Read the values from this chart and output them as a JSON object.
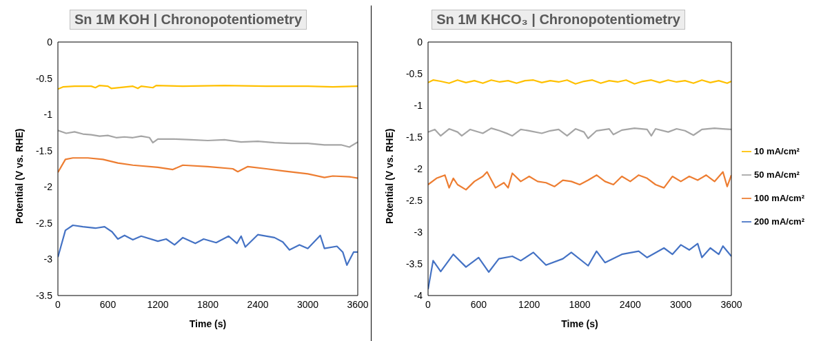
{
  "chart_data": [
    {
      "type": "line",
      "title": "Sn 1M KOH | Chronopotentiometry",
      "xlabel": "Time (s)",
      "ylabel": "Potential (V vs. RHE)",
      "xlim": [
        0,
        3600
      ],
      "xticks": [
        0,
        600,
        1200,
        1800,
        2400,
        3000,
        3600
      ],
      "ylim": [
        -3.5,
        0
      ],
      "yticks": [
        0,
        -0.5,
        -1,
        -1.5,
        -2,
        -2.5,
        -3,
        -3.5
      ],
      "grid": false,
      "legend": false,
      "series": [
        {
          "color": "#ffc000",
          "x": [
            0,
            60,
            200,
            400,
            450,
            500,
            600,
            640,
            900,
            960,
            1000,
            1140,
            1180,
            1500,
            2000,
            2500,
            3000,
            3300,
            3600
          ],
          "values": [
            -0.65,
            -0.62,
            -0.61,
            -0.61,
            -0.63,
            -0.6,
            -0.61,
            -0.64,
            -0.61,
            -0.64,
            -0.61,
            -0.63,
            -0.6,
            -0.61,
            -0.6,
            -0.61,
            -0.61,
            -0.62,
            -0.61
          ]
        },
        {
          "color": "#a5a5a5",
          "x": [
            0,
            100,
            200,
            300,
            400,
            500,
            600,
            700,
            800,
            900,
            1000,
            1100,
            1140,
            1200,
            1400,
            1600,
            1800,
            2000,
            2200,
            2400,
            2600,
            2800,
            3000,
            3200,
            3400,
            3500,
            3600
          ],
          "values": [
            -1.22,
            -1.26,
            -1.24,
            -1.27,
            -1.28,
            -1.3,
            -1.29,
            -1.32,
            -1.31,
            -1.32,
            -1.3,
            -1.32,
            -1.39,
            -1.34,
            -1.34,
            -1.35,
            -1.36,
            -1.35,
            -1.38,
            -1.37,
            -1.39,
            -1.4,
            -1.4,
            -1.42,
            -1.42,
            -1.45,
            -1.38
          ]
        },
        {
          "color": "#ed7d31",
          "x": [
            0,
            90,
            180,
            360,
            540,
            720,
            900,
            1200,
            1380,
            1500,
            1800,
            2100,
            2160,
            2280,
            2500,
            2700,
            3000,
            3200,
            3300,
            3500,
            3600
          ],
          "values": [
            -1.8,
            -1.62,
            -1.6,
            -1.6,
            -1.62,
            -1.67,
            -1.7,
            -1.73,
            -1.76,
            -1.7,
            -1.72,
            -1.75,
            -1.79,
            -1.72,
            -1.75,
            -1.78,
            -1.82,
            -1.87,
            -1.85,
            -1.86,
            -1.88
          ]
        },
        {
          "color": "#4472c4",
          "x": [
            0,
            90,
            180,
            300,
            450,
            560,
            650,
            720,
            800,
            900,
            1000,
            1200,
            1300,
            1400,
            1500,
            1650,
            1750,
            1900,
            2050,
            2150,
            2200,
            2250,
            2400,
            2600,
            2700,
            2780,
            2900,
            3000,
            3150,
            3200,
            3350,
            3420,
            3470,
            3550,
            3600
          ],
          "values": [
            -2.97,
            -2.6,
            -2.53,
            -2.55,
            -2.57,
            -2.55,
            -2.62,
            -2.72,
            -2.67,
            -2.73,
            -2.68,
            -2.75,
            -2.72,
            -2.8,
            -2.7,
            -2.78,
            -2.72,
            -2.77,
            -2.68,
            -2.78,
            -2.68,
            -2.83,
            -2.66,
            -2.7,
            -2.76,
            -2.87,
            -2.8,
            -2.85,
            -2.67,
            -2.85,
            -2.82,
            -2.9,
            -3.08,
            -2.9,
            -2.9
          ]
        }
      ]
    },
    {
      "type": "line",
      "title": "Sn 1M KHCO₃ | Chronopotentiometry",
      "xlabel": "Time (s)",
      "ylabel": "Potential (V vs. RHE)",
      "xlim": [
        0,
        3600
      ],
      "xticks": [
        0,
        600,
        1200,
        1800,
        2400,
        3000,
        3600
      ],
      "ylim": [
        -4,
        0
      ],
      "yticks": [
        0,
        -0.5,
        -1,
        -1.5,
        -2,
        -2.5,
        -3,
        -3.5,
        -4
      ],
      "grid": false,
      "legend": "right",
      "series": [
        {
          "name": "10 mA/cm²",
          "color": "#ffc000",
          "x": [
            0,
            60,
            150,
            250,
            350,
            450,
            550,
            650,
            750,
            850,
            950,
            1050,
            1150,
            1250,
            1350,
            1450,
            1550,
            1650,
            1750,
            1850,
            1950,
            2050,
            2150,
            2250,
            2350,
            2450,
            2550,
            2650,
            2750,
            2850,
            2950,
            3050,
            3150,
            3250,
            3350,
            3450,
            3550,
            3600
          ],
          "values": [
            -0.64,
            -0.6,
            -0.62,
            -0.65,
            -0.6,
            -0.64,
            -0.61,
            -0.65,
            -0.6,
            -0.63,
            -0.61,
            -0.65,
            -0.61,
            -0.6,
            -0.64,
            -0.61,
            -0.63,
            -0.6,
            -0.66,
            -0.62,
            -0.6,
            -0.65,
            -0.61,
            -0.63,
            -0.6,
            -0.66,
            -0.62,
            -0.6,
            -0.64,
            -0.6,
            -0.63,
            -0.61,
            -0.65,
            -0.6,
            -0.64,
            -0.61,
            -0.65,
            -0.62
          ]
        },
        {
          "name": "50 mA/cm²",
          "color": "#a5a5a5",
          "x": [
            0,
            80,
            150,
            250,
            350,
            400,
            500,
            650,
            750,
            850,
            950,
            1000,
            1100,
            1200,
            1350,
            1450,
            1550,
            1650,
            1750,
            1850,
            1900,
            2000,
            2150,
            2200,
            2300,
            2450,
            2600,
            2650,
            2700,
            2850,
            2950,
            3050,
            3150,
            3250,
            3400,
            3500,
            3600
          ],
          "values": [
            -1.42,
            -1.38,
            -1.48,
            -1.37,
            -1.42,
            -1.48,
            -1.38,
            -1.44,
            -1.36,
            -1.4,
            -1.45,
            -1.48,
            -1.38,
            -1.4,
            -1.44,
            -1.4,
            -1.38,
            -1.48,
            -1.37,
            -1.42,
            -1.52,
            -1.4,
            -1.37,
            -1.46,
            -1.39,
            -1.36,
            -1.38,
            -1.48,
            -1.37,
            -1.42,
            -1.37,
            -1.4,
            -1.47,
            -1.38,
            -1.36,
            -1.37,
            -1.38
          ]
        },
        {
          "name": "100 mA/cm²",
          "color": "#ed7d31",
          "x": [
            0,
            100,
            200,
            250,
            300,
            350,
            450,
            550,
            650,
            700,
            800,
            900,
            950,
            1000,
            1100,
            1200,
            1300,
            1400,
            1500,
            1600,
            1700,
            1800,
            1900,
            2000,
            2100,
            2200,
            2300,
            2400,
            2500,
            2600,
            2700,
            2800,
            2900,
            3000,
            3100,
            3200,
            3300,
            3400,
            3500,
            3550,
            3600
          ],
          "values": [
            -2.25,
            -2.15,
            -2.1,
            -2.3,
            -2.15,
            -2.25,
            -2.33,
            -2.2,
            -2.12,
            -2.05,
            -2.3,
            -2.22,
            -2.3,
            -2.07,
            -2.2,
            -2.12,
            -2.2,
            -2.22,
            -2.28,
            -2.18,
            -2.2,
            -2.25,
            -2.18,
            -2.1,
            -2.2,
            -2.25,
            -2.12,
            -2.2,
            -2.1,
            -2.15,
            -2.25,
            -2.3,
            -2.12,
            -2.2,
            -2.12,
            -2.18,
            -2.1,
            -2.2,
            -2.05,
            -2.28,
            -2.1
          ]
        },
        {
          "name": "200 mA/cm²",
          "color": "#4472c4",
          "x": [
            0,
            60,
            150,
            300,
            450,
            600,
            720,
            840,
            1000,
            1100,
            1250,
            1400,
            1600,
            1700,
            1900,
            2000,
            2100,
            2300,
            2500,
            2600,
            2800,
            2900,
            3000,
            3100,
            3200,
            3250,
            3350,
            3450,
            3500,
            3600
          ],
          "values": [
            -3.9,
            -3.45,
            -3.62,
            -3.35,
            -3.55,
            -3.4,
            -3.63,
            -3.42,
            -3.38,
            -3.45,
            -3.32,
            -3.52,
            -3.42,
            -3.32,
            -3.53,
            -3.3,
            -3.48,
            -3.35,
            -3.3,
            -3.4,
            -3.25,
            -3.35,
            -3.2,
            -3.28,
            -3.18,
            -3.4,
            -3.25,
            -3.35,
            -3.22,
            -3.38
          ]
        }
      ]
    }
  ]
}
